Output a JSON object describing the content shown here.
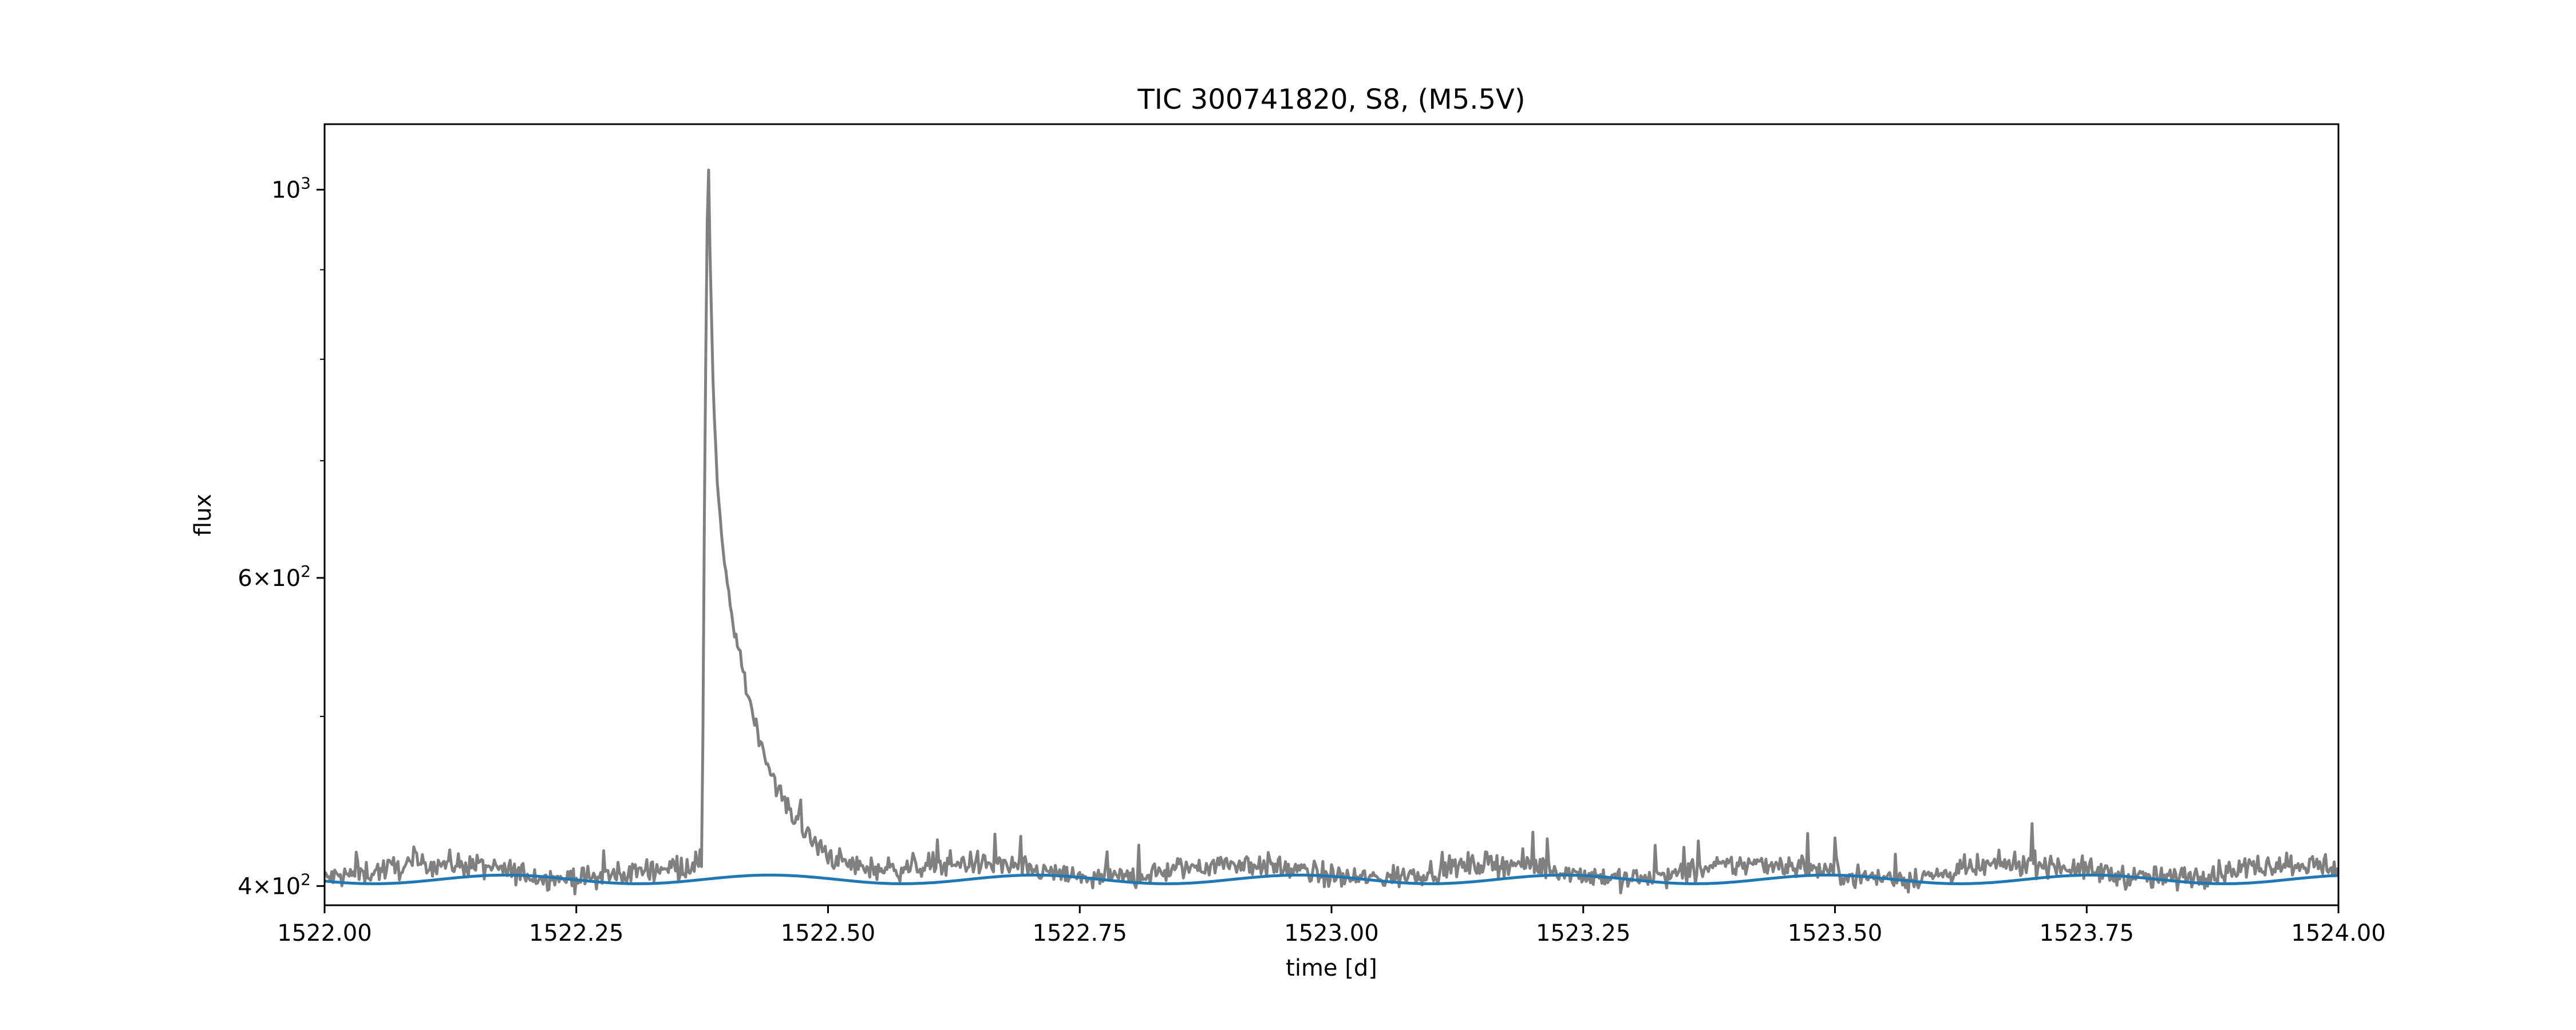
{
  "colors": {
    "flux_line": "#808080",
    "model_line": "#1f77b4",
    "axes": "#000000",
    "background": "#ffffff"
  },
  "chart_data": {
    "type": "line",
    "title": "TIC 300741820, S8, (M5.5V)",
    "xlabel": "time [d]",
    "ylabel": "flux",
    "xlim": [
      1522.0,
      1524.0
    ],
    "ylim": [
      390,
      1090
    ],
    "yscale": "log",
    "grid": false,
    "legend": "none",
    "x_ticks": [
      1522.0,
      1522.25,
      1522.5,
      1522.75,
      1523.0,
      1523.25,
      1523.5,
      1523.75,
      1524.0
    ],
    "x_tick_labels": [
      "1522.00",
      "1522.25",
      "1522.50",
      "1522.75",
      "1523.00",
      "1523.25",
      "1523.50",
      "1523.75",
      "1524.00"
    ],
    "y_major_ticks": [
      400,
      600,
      1000
    ],
    "y_major_tick_labels": [
      {
        "mantissa": "4",
        "times": "×",
        "base": "10",
        "exp": "2"
      },
      {
        "mantissa": "6",
        "times": "×",
        "base": "10",
        "exp": "2"
      },
      {
        "mantissa": "",
        "times": "",
        "base": "10",
        "exp": "3"
      }
    ],
    "y_minor_ticks": [
      500,
      700,
      800,
      900
    ],
    "series": [
      {
        "role": "observed flux",
        "color_key": "flux_line",
        "baseline": 408,
        "baseline_modulation": 4,
        "noise_amplitude": 6,
        "n_points": 1400,
        "flare": {
          "start": 1522.375,
          "peak_time": 1522.381,
          "peak": 1065,
          "decay_to": 420
        },
        "points": [
          [
            1522.0,
            410
          ],
          [
            1522.1,
            411
          ],
          [
            1522.2,
            412
          ],
          [
            1522.3,
            409
          ],
          [
            1522.375,
            409
          ],
          [
            1522.381,
            1065
          ],
          [
            1522.39,
            640
          ],
          [
            1522.4,
            530
          ],
          [
            1522.42,
            480
          ],
          [
            1522.45,
            450
          ],
          [
            1522.48,
            425
          ],
          [
            1522.55,
            414
          ],
          [
            1522.75,
            410
          ],
          [
            1523.0,
            411
          ],
          [
            1523.25,
            410
          ],
          [
            1523.5,
            411
          ],
          [
            1523.75,
            410
          ],
          [
            1524.0,
            411
          ]
        ]
      },
      {
        "role": "quiescent model",
        "color_key": "model_line",
        "mean": 403.5,
        "amplitude": 2.3,
        "period": 0.2625,
        "phase_reference": 1522.18,
        "points": [
          [
            1522.05,
            405.5
          ],
          [
            1522.12,
            401.4
          ],
          [
            1522.18,
            405.8
          ],
          [
            1522.25,
            401.4
          ],
          [
            1522.44,
            405.8
          ],
          [
            1522.57,
            401.2
          ],
          [
            1522.71,
            405.8
          ],
          [
            1522.84,
            401.2
          ],
          [
            1522.97,
            405.8
          ],
          [
            1523.1,
            401.2
          ],
          [
            1523.23,
            405.8
          ],
          [
            1523.36,
            401.2
          ],
          [
            1523.49,
            405.8
          ],
          [
            1523.62,
            401.2
          ],
          [
            1523.75,
            405.8
          ],
          [
            1523.88,
            401.2
          ],
          [
            1524.0,
            405.6
          ]
        ]
      }
    ]
  }
}
